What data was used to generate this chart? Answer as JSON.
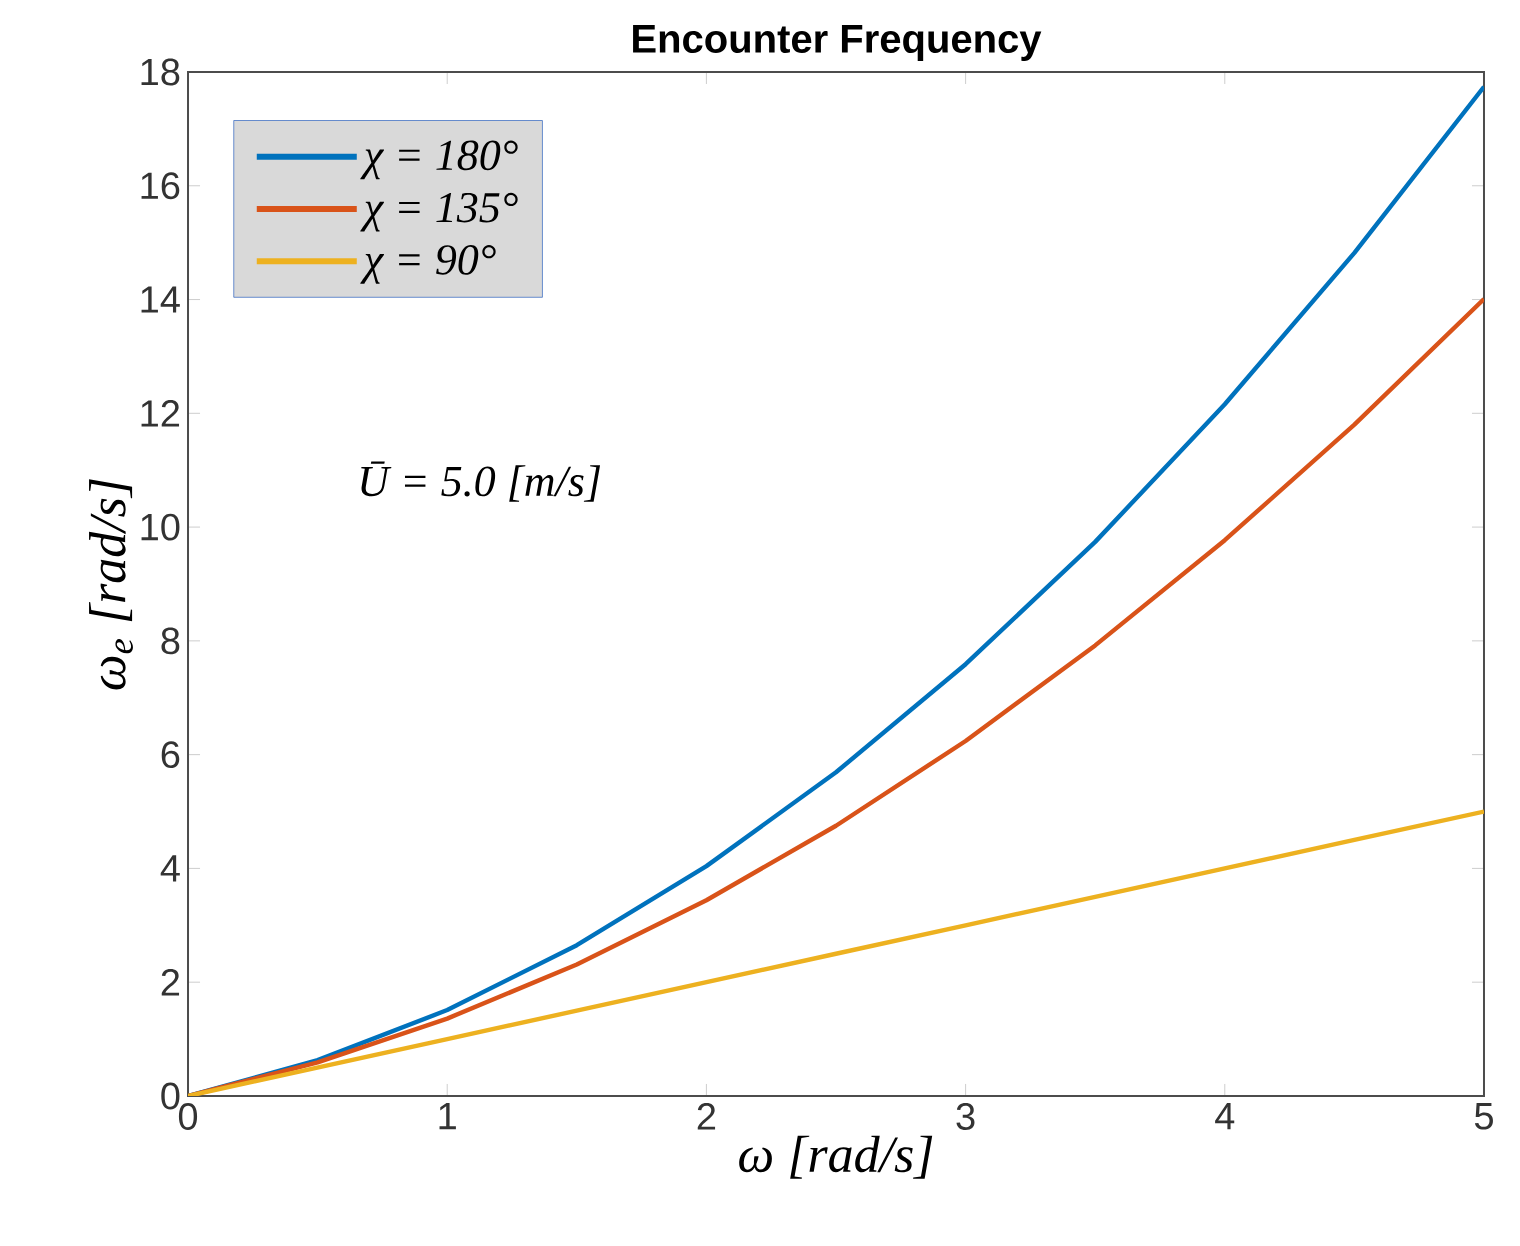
{
  "chart_data": {
    "type": "line",
    "title": "Encounter Frequency",
    "xlabel": "ω [rad/s]",
    "ylabel": "ω$_{e}$ [rad/s]",
    "x": [
      0,
      0.5,
      1,
      1.5,
      2,
      2.5,
      3,
      3.5,
      4,
      4.5,
      5
    ],
    "xlim": [
      0,
      5
    ],
    "ylim": [
      0,
      18
    ],
    "xticks": [
      0,
      1,
      2,
      3,
      4,
      5
    ],
    "yticks": [
      0,
      2,
      4,
      6,
      8,
      10,
      12,
      14,
      16,
      18
    ],
    "series": [
      {
        "name": "χ = 180°",
        "color": "#0072bd",
        "values": [
          0,
          0.63,
          1.51,
          2.65,
          4.04,
          5.69,
          7.59,
          9.74,
          12.16,
          14.82,
          17.74
        ]
      },
      {
        "name": "χ = 135°",
        "color": "#d95319",
        "values": [
          0,
          0.59,
          1.36,
          2.31,
          3.44,
          4.75,
          6.24,
          7.92,
          9.77,
          11.8,
          14.01
        ]
      },
      {
        "name": "χ = 90°",
        "color": "#edb120",
        "values": [
          0,
          0.5,
          1,
          1.5,
          2,
          2.5,
          3,
          3.5,
          4,
          4.5,
          5
        ]
      }
    ],
    "annotations": [
      "Ū = 5.0 [m/s]"
    ],
    "legend": "top left",
    "grid": false
  }
}
